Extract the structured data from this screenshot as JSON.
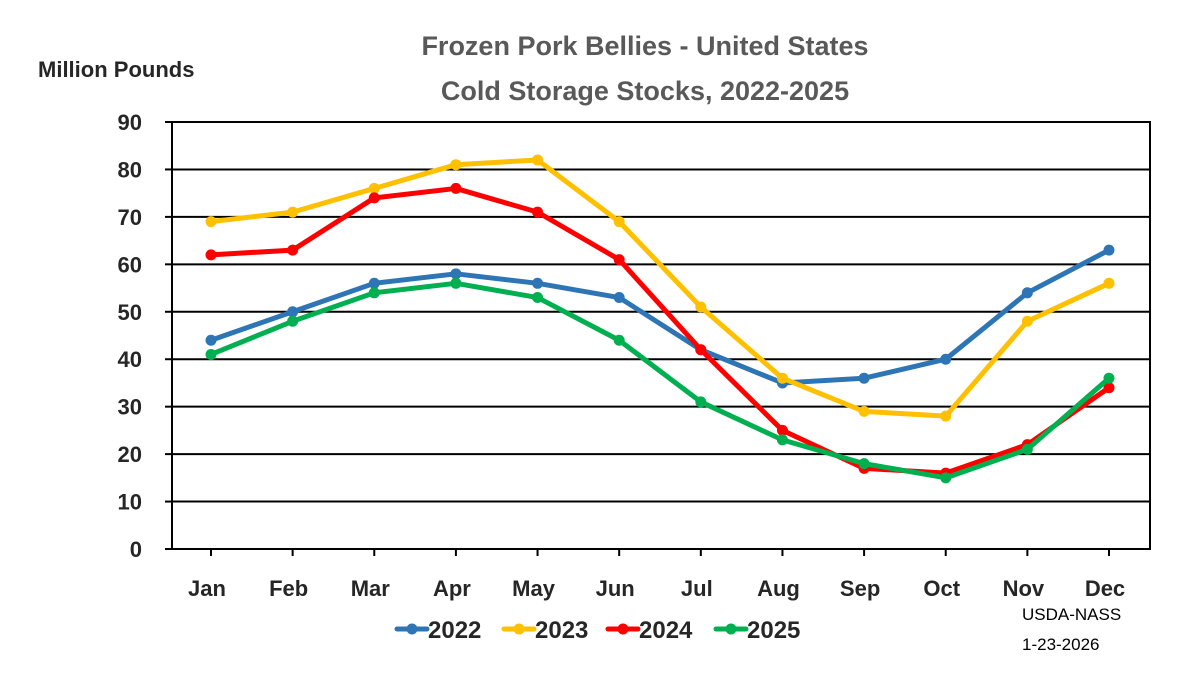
{
  "chart_data": {
    "type": "line",
    "title": "Frozen Pork Bellies - United States",
    "subtitle": "Cold Storage Stocks, 2022-2025",
    "ylabel": "Million Pounds",
    "xlabel": "",
    "categories": [
      "Jan",
      "Feb",
      "Mar",
      "Apr",
      "May",
      "Jun",
      "Jul",
      "Aug",
      "Sep",
      "Oct",
      "Nov",
      "Dec"
    ],
    "yticks": [
      "0",
      "10",
      "20",
      "30",
      "40",
      "50",
      "60",
      "70",
      "80",
      "90"
    ],
    "ylim": [
      0,
      90
    ],
    "grid": "horizontal",
    "legend_position": "bottom",
    "series": [
      {
        "name": "2022",
        "color": "#2E75B6",
        "values": [
          44,
          50,
          56,
          58,
          56,
          53,
          42,
          35,
          36,
          40,
          54,
          63
        ]
      },
      {
        "name": "2023",
        "color": "#FFC000",
        "values": [
          69,
          71,
          76,
          81,
          82,
          69,
          51,
          36,
          29,
          28,
          48,
          56
        ]
      },
      {
        "name": "2024",
        "color": "#FF0000",
        "values": [
          62,
          63,
          74,
          76,
          71,
          61,
          42,
          25,
          17,
          16,
          22,
          34
        ]
      },
      {
        "name": "2025",
        "color": "#00B050",
        "values": [
          41,
          48,
          54,
          56,
          53,
          44,
          31,
          23,
          18,
          15,
          21,
          36
        ]
      }
    ],
    "source_line1": "USDA-NASS",
    "source_line2": "1-23-2026"
  }
}
